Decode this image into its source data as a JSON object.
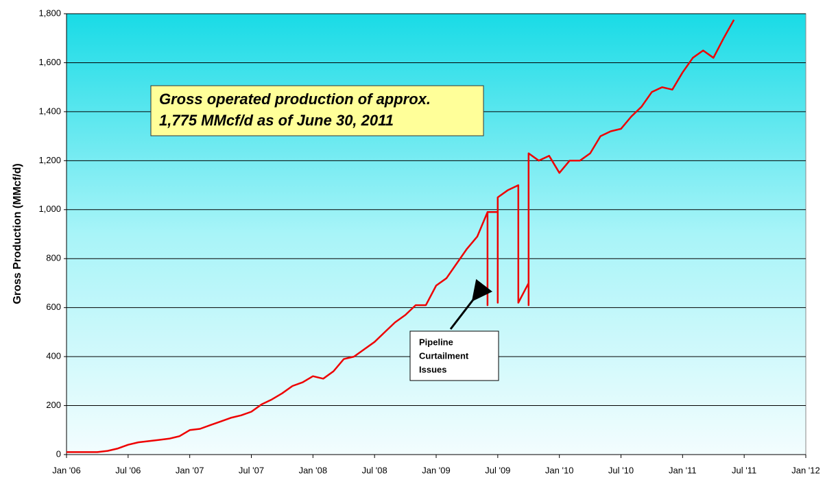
{
  "chart_data": {
    "type": "line",
    "ylabel": "Gross Production (MMcf/d)",
    "annotations": [
      {
        "lines": [
          "Gross operated production of approx.",
          "1,775 MMcf/d as of June 30, 2011"
        ]
      },
      {
        "lines": [
          "Pipeline",
          "Curtailment",
          "Issues"
        ]
      }
    ],
    "x": [
      "2006-01",
      "2006-02",
      "2006-03",
      "2006-04",
      "2006-05",
      "2006-06",
      "2006-07",
      "2006-08",
      "2006-09",
      "2006-10",
      "2006-11",
      "2006-12",
      "2007-01",
      "2007-02",
      "2007-03",
      "2007-04",
      "2007-05",
      "2007-06",
      "2007-07",
      "2007-08",
      "2007-09",
      "2007-10",
      "2007-11",
      "2007-12",
      "2008-01",
      "2008-02",
      "2008-03",
      "2008-04",
      "2008-05",
      "2008-06",
      "2008-07",
      "2008-08",
      "2008-09",
      "2008-10",
      "2008-11",
      "2008-12",
      "2009-01",
      "2009-02",
      "2009-03",
      "2009-04",
      "2009-05",
      "2009-06",
      "2009-06",
      "2009-06",
      "2009-07",
      "2009-07",
      "2009-07",
      "2009-07",
      "2009-07",
      "2009-08",
      "2009-09",
      "2009-09",
      "2009-10",
      "2009-10",
      "2009-10",
      "2009-10",
      "2009-11",
      "2009-12",
      "2010-01",
      "2010-02",
      "2010-03",
      "2010-04",
      "2010-05",
      "2010-06",
      "2010-07",
      "2010-08",
      "2010-09",
      "2010-10",
      "2010-11",
      "2010-12",
      "2011-01",
      "2011-02",
      "2011-03",
      "2011-04",
      "2011-05",
      "2011-06"
    ],
    "series": [
      {
        "name": "Gross Production",
        "color": "#ee0000",
        "values": [
          10,
          10,
          10,
          10,
          15,
          25,
          40,
          50,
          55,
          60,
          65,
          75,
          100,
          105,
          120,
          135,
          150,
          160,
          175,
          205,
          225,
          250,
          280,
          295,
          320,
          310,
          340,
          390,
          400,
          430,
          460,
          500,
          540,
          570,
          610,
          610,
          690,
          720,
          780,
          840,
          890,
          990,
          610,
          990,
          990,
          620,
          1000,
          630,
          1050,
          1080,
          1100,
          620,
          700,
          610,
          800,
          1230,
          1200,
          1220,
          1150,
          1200,
          1200,
          1230,
          1300,
          1320,
          1330,
          1380,
          1420,
          1480,
          1500,
          1490,
          1560,
          1620,
          1650,
          1620,
          1700,
          1775
        ]
      }
    ],
    "xlim": [
      "2006-01",
      "2012-01"
    ],
    "xticks": [
      {
        "value": "2006-01",
        "label": "Jan '06"
      },
      {
        "value": "2006-07",
        "label": "Jul '06"
      },
      {
        "value": "2007-01",
        "label": "Jan '07"
      },
      {
        "value": "2007-07",
        "label": "Jul '07"
      },
      {
        "value": "2008-01",
        "label": "Jan '08"
      },
      {
        "value": "2008-07",
        "label": "Jul '08"
      },
      {
        "value": "2009-01",
        "label": "Jan '09"
      },
      {
        "value": "2009-07",
        "label": "Jul '09"
      },
      {
        "value": "2010-01",
        "label": "Jan '10"
      },
      {
        "value": "2010-07",
        "label": "Jul '10"
      },
      {
        "value": "2011-01",
        "label": "Jan '11"
      },
      {
        "value": "2011-07",
        "label": "Jul '11"
      },
      {
        "value": "2012-01",
        "label": "Jan '12"
      }
    ],
    "ylim": [
      0,
      1800
    ],
    "yticks": [
      0,
      200,
      400,
      600,
      800,
      {
        "value": 1000,
        "label": "1,000"
      },
      {
        "value": 1200,
        "label": "1,200"
      },
      {
        "value": 1400,
        "label": "1,400"
      },
      {
        "value": 1600,
        "label": "1,600"
      },
      {
        "value": 1800,
        "label": "1,800"
      }
    ],
    "grid": true
  }
}
